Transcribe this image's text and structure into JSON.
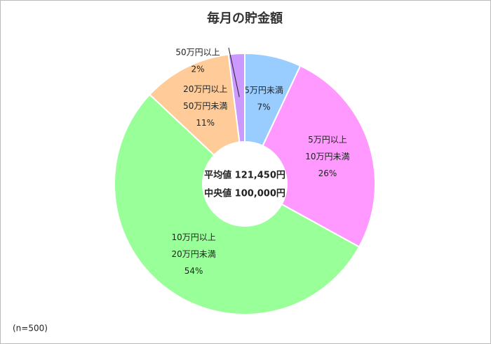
{
  "chart_data": {
    "type": "donut",
    "title": "毎月の貯金額",
    "categories": [
      [
        "5万円未満"
      ],
      [
        "5万円以上",
        "10万円未満"
      ],
      [
        "10万円以上",
        "20万円未満"
      ],
      [
        "20万円以上",
        "50万円未満"
      ],
      [
        "50万円以上"
      ]
    ],
    "values": [
      7,
      26,
      54,
      11,
      2
    ],
    "value_labels": [
      "7%",
      "26%",
      "54%",
      "11%",
      "2%"
    ],
    "colors": [
      "#99ccff",
      "#ff99ff",
      "#99ff99",
      "#ffcc99",
      "#cc99ff"
    ],
    "center_labels": [
      "平均値 121,450円",
      "中央値 100,000円"
    ],
    "note": "(n=500)"
  }
}
